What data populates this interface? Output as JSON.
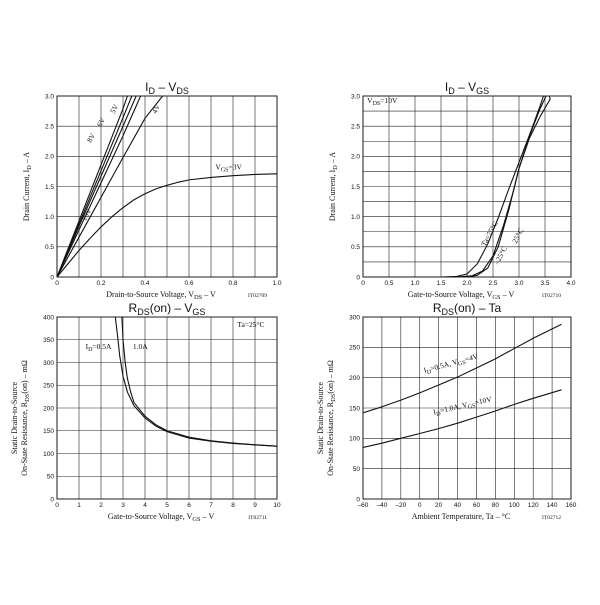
{
  "chart_data": [
    {
      "type": "line",
      "title": "ID – VDS",
      "title_parts": {
        "main": "I",
        "sub": "D",
        "rest": " – V",
        "sub2": "DS"
      },
      "xlabel": "Drain-to-Source Voltage, VDS – V",
      "ylabel": "Drain Current, ID – A",
      "xlim": [
        0,
        1.0
      ],
      "ylim": [
        0,
        3.0
      ],
      "xticks": [
        0,
        0.2,
        0.4,
        0.6,
        0.8,
        1.0
      ],
      "xtick_labels": [
        "0",
        "0.2",
        "0.4",
        "0.6",
        "0.8",
        "1.0"
      ],
      "yticks": [
        0,
        0.5,
        1.0,
        1.5,
        2.0,
        2.5,
        3.0
      ],
      "ytick_labels": [
        "0",
        "0.5",
        "1.0",
        "1.5",
        "2.0",
        "2.5",
        "3.0"
      ],
      "xgrid": [
        0,
        0.1,
        0.2,
        0.3,
        0.4,
        0.5,
        0.6,
        0.7,
        0.8,
        0.9,
        1.0
      ],
      "ygrid": [
        0,
        0.5,
        1.0,
        1.5,
        2.0,
        2.5,
        3.0
      ],
      "grid": true,
      "code": "IT02709",
      "series": [
        {
          "name": "VGS=3V",
          "x": [
            0,
            0.05,
            0.1,
            0.15,
            0.2,
            0.25,
            0.3,
            0.35,
            0.4,
            0.45,
            0.5,
            0.55,
            0.6,
            0.7,
            0.8,
            0.9,
            1.0
          ],
          "y": [
            0,
            0.22,
            0.44,
            0.64,
            0.83,
            1.0,
            1.15,
            1.28,
            1.38,
            1.46,
            1.52,
            1.57,
            1.61,
            1.65,
            1.68,
            1.7,
            1.71
          ]
        },
        {
          "name": "4V",
          "x": [
            0,
            0.1,
            0.2,
            0.3,
            0.4,
            0.48
          ],
          "y": [
            0,
            0.66,
            1.32,
            1.98,
            2.63,
            3.0
          ]
        },
        {
          "name": "5V",
          "x": [
            0,
            0.1,
            0.2,
            0.3,
            0.38
          ],
          "y": [
            0,
            0.78,
            1.56,
            2.34,
            3.0
          ]
        },
        {
          "name": "6V",
          "x": [
            0,
            0.1,
            0.2,
            0.3,
            0.36
          ],
          "y": [
            0,
            0.84,
            1.67,
            2.5,
            3.0
          ]
        },
        {
          "name": "8V",
          "x": [
            0,
            0.1,
            0.2,
            0.3,
            0.34
          ],
          "y": [
            0,
            0.88,
            1.76,
            2.64,
            3.0
          ]
        },
        {
          "name": "10V",
          "x": [
            0,
            0.1,
            0.2,
            0.3,
            0.32
          ],
          "y": [
            0,
            0.93,
            1.86,
            2.79,
            3.0
          ]
        }
      ],
      "annotations": [
        {
          "id": "vgs3",
          "text": "VGS=3V",
          "x": 0.72,
          "y": 1.78,
          "rotate": 0
        },
        {
          "id": "v10",
          "text": "10V",
          "x": 0.13,
          "y": 0.92,
          "rotate": -62
        },
        {
          "id": "v8",
          "text": "8V",
          "x": 0.155,
          "y": 2.22,
          "rotate": -62
        },
        {
          "id": "v6",
          "text": "6V",
          "x": 0.2,
          "y": 2.48,
          "rotate": -62
        },
        {
          "id": "v5",
          "text": "5V",
          "x": 0.26,
          "y": 2.7,
          "rotate": -62
        },
        {
          "id": "v4",
          "text": "4V",
          "x": 0.45,
          "y": 2.7,
          "rotate": -62
        }
      ]
    },
    {
      "type": "line",
      "title": "ID – VGS",
      "title_parts": {
        "main": "I",
        "sub": "D",
        "rest": " – V",
        "sub2": "GS"
      },
      "xlabel": "Gate-to-Source Voltage, VGS – V",
      "ylabel": "Drain Current, ID – A",
      "xlim": [
        0,
        4.0
      ],
      "ylim": [
        0,
        3.0
      ],
      "xticks": [
        0,
        0.5,
        1.0,
        1.5,
        2.0,
        2.5,
        3.0,
        3.5,
        4.0
      ],
      "xtick_labels": [
        "0",
        "0.5",
        "1.0",
        "1.5",
        "2.0",
        "2.5",
        "3.0",
        "3.5",
        "4.0"
      ],
      "yticks": [
        0,
        0.5,
        1.0,
        1.5,
        2.0,
        2.5,
        3.0
      ],
      "ytick_labels": [
        "0",
        "0.5",
        "1.0",
        "1.5",
        "2.0",
        "2.5",
        "3.0"
      ],
      "xgrid": [
        0,
        0.5,
        1.0,
        1.5,
        2.0,
        2.5,
        3.0,
        3.5,
        4.0
      ],
      "ygrid": [
        0,
        0.25,
        0.5,
        0.75,
        1.0,
        1.25,
        1.5,
        1.75,
        2.0,
        2.25,
        2.5,
        2.75,
        3.0
      ],
      "grid": true,
      "code": "IT02710",
      "series": [
        {
          "name": "Ta=75°C",
          "x": [
            0,
            1.5,
            1.8,
            2.0,
            2.2,
            2.4,
            2.6,
            2.8,
            3.0,
            3.2,
            3.4,
            3.47
          ],
          "y": [
            0,
            0,
            0.01,
            0.05,
            0.22,
            0.55,
            0.98,
            1.45,
            1.9,
            2.35,
            2.82,
            3.0
          ]
        },
        {
          "name": "–25°C",
          "x": [
            0,
            1.8,
            2.1,
            2.3,
            2.5,
            2.7,
            2.9,
            3.0,
            3.2,
            3.4,
            3.52
          ],
          "y": [
            0,
            0,
            0.02,
            0.1,
            0.35,
            0.85,
            1.45,
            1.8,
            2.33,
            2.78,
            3.0
          ]
        },
        {
          "name": "25°C",
          "x": [
            0,
            2.0,
            2.2,
            2.4,
            2.6,
            2.8,
            3.0,
            3.2,
            3.4,
            3.6,
            3.58
          ],
          "y": [
            0,
            0,
            0.03,
            0.15,
            0.5,
            1.1,
            1.8,
            2.3,
            2.65,
            2.95,
            3.0
          ]
        }
      ],
      "annotations": [
        {
          "id": "vds",
          "text": "VDS=10V",
          "x": 0.08,
          "y": 2.88,
          "rotate": 0
        },
        {
          "id": "t75",
          "text": "Ta=75°C",
          "x": 2.35,
          "y": 0.5,
          "rotate": -62
        },
        {
          "id": "tm25",
          "text": "–25°C",
          "x": 2.6,
          "y": 0.2,
          "rotate": -62
        },
        {
          "id": "t25",
          "text": "25°C",
          "x": 2.95,
          "y": 0.55,
          "rotate": -62
        }
      ]
    },
    {
      "type": "line",
      "title": "RDS(on) – VGS",
      "title_parts": {
        "main": "R",
        "sub": "DS",
        "rest": "(on) – V",
        "sub2": "GS"
      },
      "xlabel": "Gate-to-Source Voltage, VGS – V",
      "ylabel_lines": [
        "Static Drain-to-Source",
        "On-State Resistance, RDS(on) – mΩ"
      ],
      "xlim": [
        0,
        10
      ],
      "ylim": [
        0,
        400
      ],
      "xticks": [
        0,
        1,
        2,
        3,
        4,
        5,
        6,
        7,
        8,
        9,
        10
      ],
      "xtick_labels": [
        "0",
        "1",
        "2",
        "3",
        "4",
        "5",
        "6",
        "7",
        "8",
        "9",
        "10"
      ],
      "yticks": [
        0,
        50,
        100,
        150,
        200,
        250,
        300,
        350,
        400
      ],
      "ytick_labels": [
        "0",
        "50",
        "100",
        "150",
        "200",
        "250",
        "300",
        "350",
        "400"
      ],
      "xgrid": [
        0,
        1,
        2,
        3,
        4,
        5,
        6,
        7,
        8,
        9,
        10
      ],
      "ygrid": [
        0,
        50,
        100,
        150,
        200,
        250,
        300,
        350,
        400
      ],
      "grid": true,
      "code": "IT02711",
      "series": [
        {
          "name": "ID=0.5A",
          "x": [
            2.65,
            2.75,
            2.85,
            3.0,
            3.2,
            3.5,
            4.0,
            4.5,
            5.0,
            6.0,
            7.0,
            8.0,
            9.0,
            10.0
          ],
          "y": [
            400,
            360,
            315,
            270,
            235,
            205,
            178,
            160,
            148,
            134,
            127,
            122,
            119,
            116
          ]
        },
        {
          "name": "1.0A",
          "x": [
            2.95,
            3.0,
            3.1,
            3.2,
            3.35,
            3.5,
            4.0,
            4.5,
            5.0,
            6.0,
            7.0,
            8.0,
            9.0,
            10.0
          ],
          "y": [
            400,
            350,
            300,
            265,
            235,
            212,
            182,
            163,
            150,
            136,
            128,
            123,
            119,
            116
          ]
        }
      ],
      "annotations": [
        {
          "id": "ta",
          "text": "Ta=25°C",
          "x": 8.2,
          "y": 378,
          "rotate": 0
        },
        {
          "id": "id05",
          "text": "ID=0.5A",
          "x": 1.3,
          "y": 330,
          "rotate": 0
        },
        {
          "id": "id10",
          "text": "1.0A",
          "x": 3.45,
          "y": 330,
          "rotate": 0
        }
      ]
    },
    {
      "type": "line",
      "title": "RDS(on) – Ta",
      "title_parts": {
        "main": "R",
        "sub": "DS",
        "rest": "(on) – Ta",
        "sub2": ""
      },
      "xlabel": "Ambient Temperature, Ta – °C",
      "ylabel_lines": [
        "Static Drain-to-Source",
        "On-State Resistance, RDS(on) – mΩ"
      ],
      "xlim": [
        -60,
        160
      ],
      "ylim": [
        0,
        300
      ],
      "xticks": [
        -60,
        -40,
        -20,
        0,
        20,
        40,
        60,
        80,
        100,
        120,
        140,
        160
      ],
      "xtick_labels": [
        "–60",
        "–40",
        "–20",
        "0",
        "20",
        "40",
        "60",
        "80",
        "100",
        "120",
        "140",
        "160"
      ],
      "yticks": [
        0,
        50,
        100,
        150,
        200,
        250,
        300
      ],
      "ytick_labels": [
        "0",
        "50",
        "100",
        "150",
        "200",
        "250",
        "300"
      ],
      "xgrid": [
        -60,
        -40,
        -20,
        0,
        20,
        40,
        60,
        80,
        100,
        120,
        140,
        160
      ],
      "ygrid": [
        0,
        50,
        100,
        150,
        200,
        250,
        300
      ],
      "grid": true,
      "code": "IT02712",
      "series": [
        {
          "name": "ID=0.5A, VGS=4V",
          "x": [
            -60,
            -40,
            -20,
            0,
            20,
            40,
            60,
            80,
            100,
            120,
            150
          ],
          "y": [
            142,
            152,
            163,
            175,
            188,
            201,
            216,
            231,
            248,
            265,
            288
          ]
        },
        {
          "name": "ID=1.0A, VGS=10V",
          "x": [
            -60,
            -40,
            -20,
            0,
            20,
            40,
            60,
            80,
            100,
            120,
            150
          ],
          "y": [
            85,
            92,
            100,
            108,
            116,
            125,
            135,
            145,
            156,
            166,
            180
          ]
        }
      ],
      "annotations": [
        {
          "id": "s1",
          "text": "ID=0.5A, VGS=4V",
          "x": 5,
          "y": 208,
          "rotate": -15
        },
        {
          "id": "s2",
          "text": "ID=1.0A, VGS=10V",
          "x": 15,
          "y": 139,
          "rotate": -13
        }
      ]
    }
  ]
}
